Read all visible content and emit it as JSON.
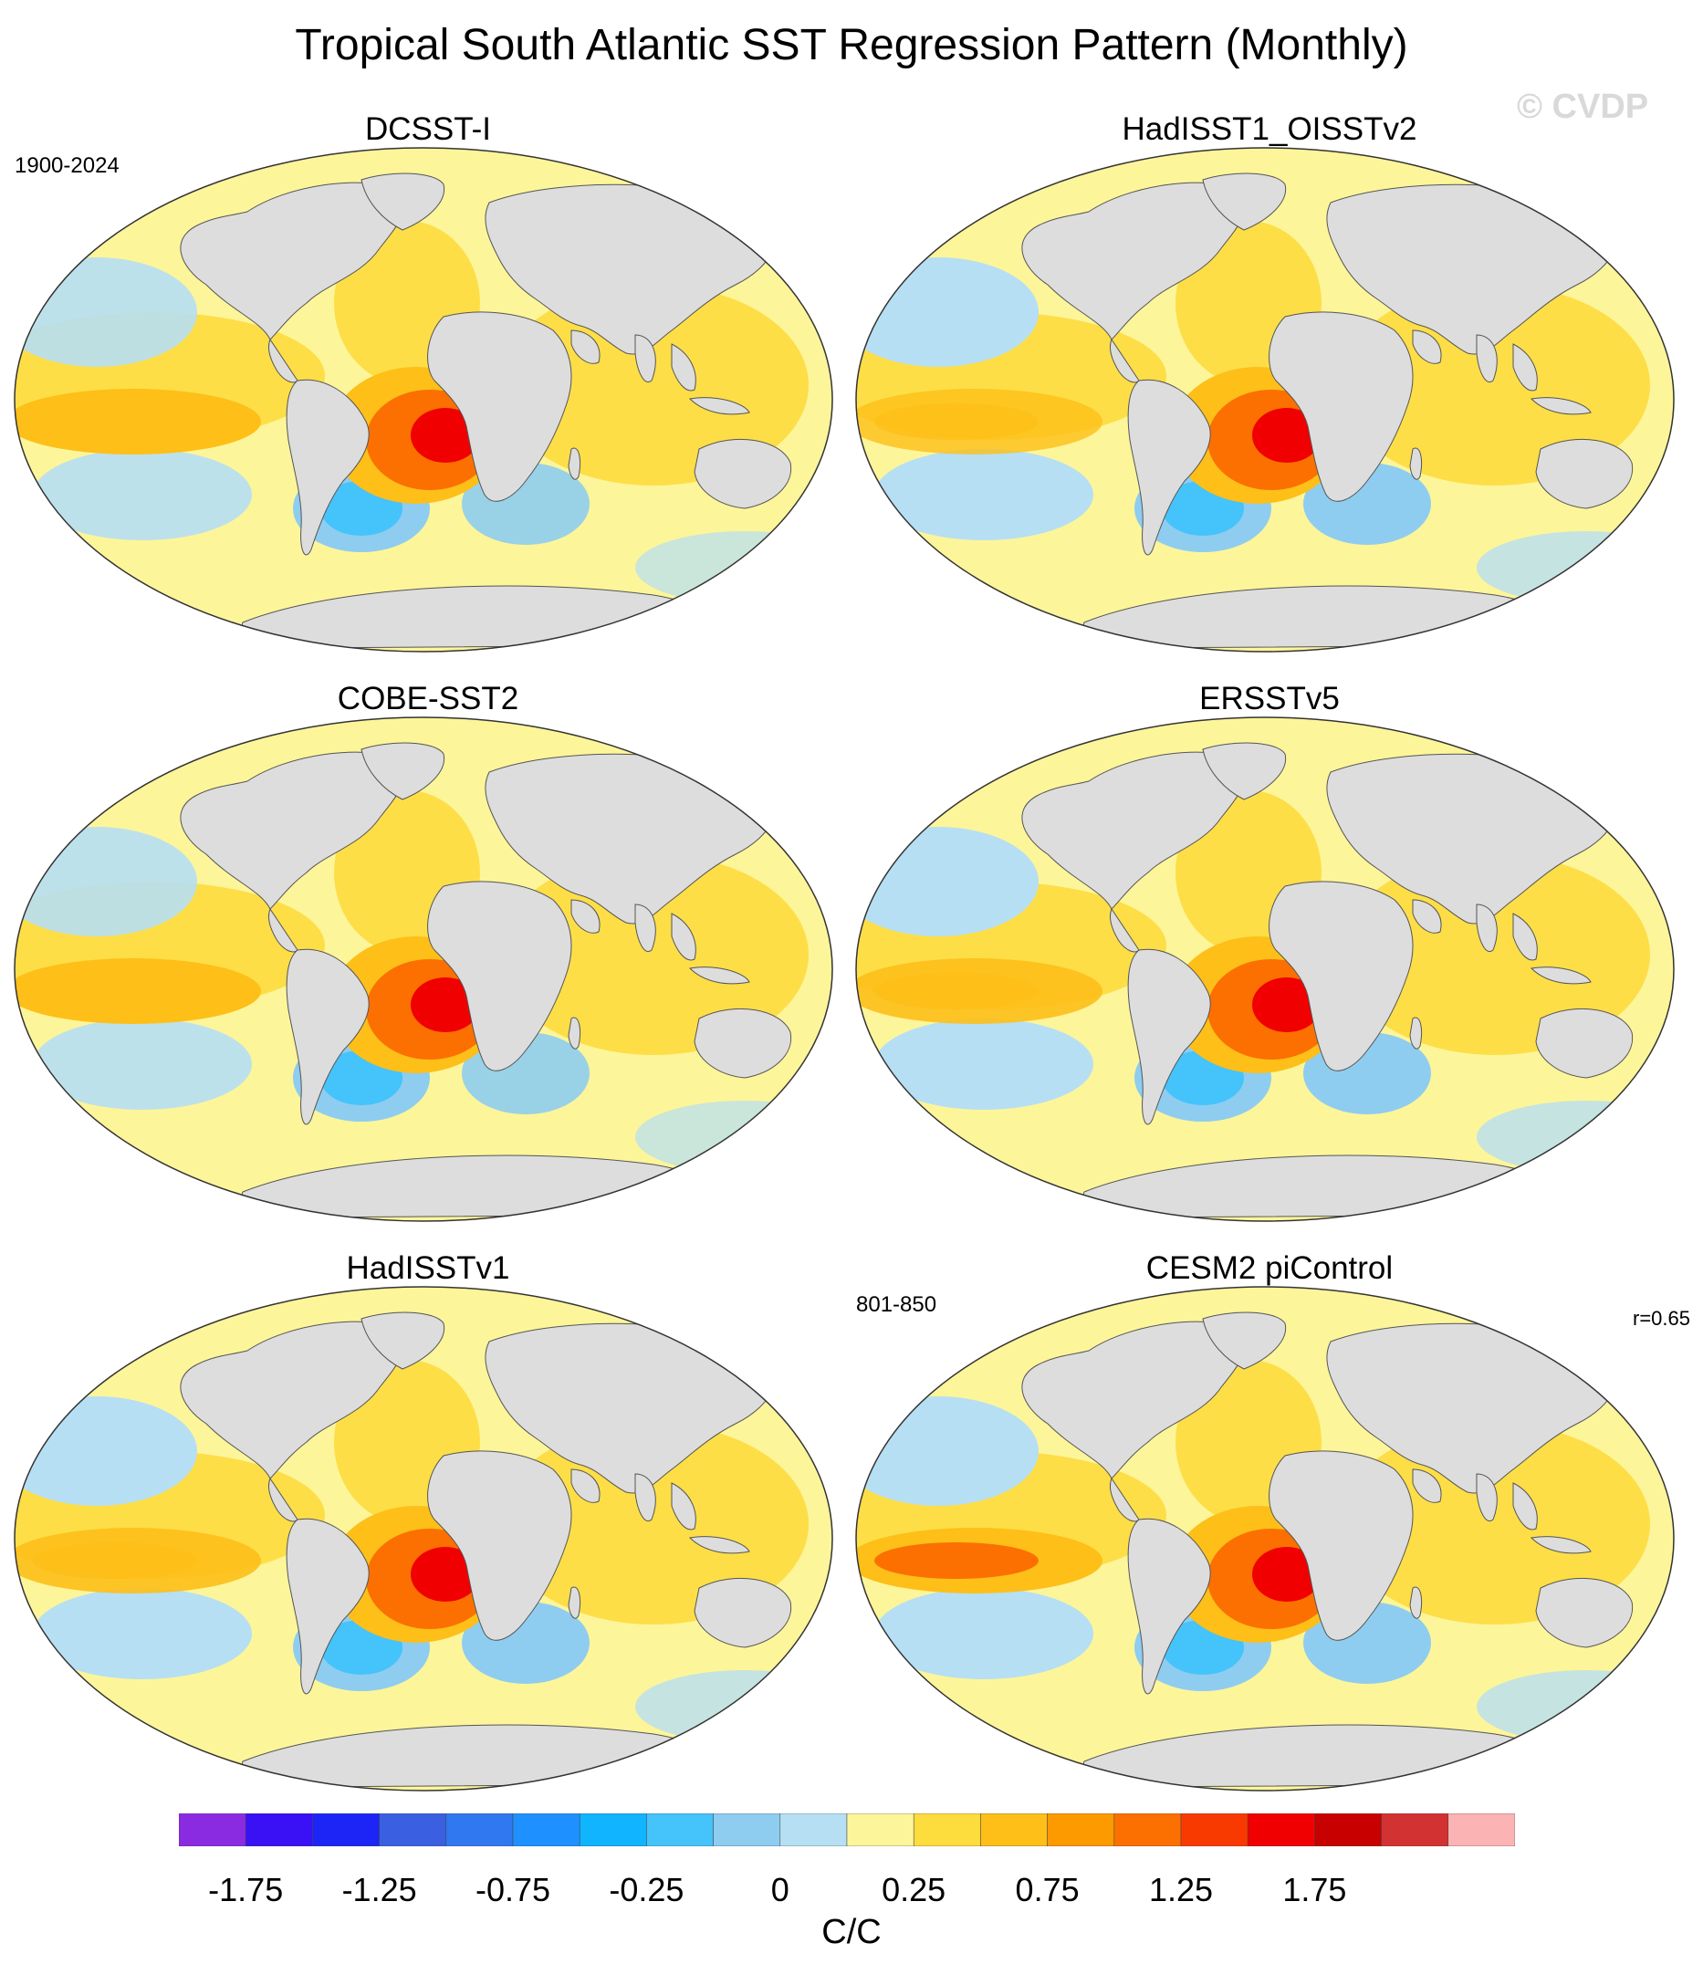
{
  "title": "Tropical South Atlantic SST Regression Pattern (Monthly)",
  "watermark": "© CVDP",
  "panels": [
    {
      "name": "DCSST-I",
      "left_note": "1900-2024",
      "right_note": ""
    },
    {
      "name": "HadISST1_OISSTv2",
      "left_note": "",
      "right_note": ""
    },
    {
      "name": "COBE-SST2",
      "left_note": "",
      "right_note": ""
    },
    {
      "name": "ERSSTv5",
      "left_note": "",
      "right_note": ""
    },
    {
      "name": "HadISSTv1",
      "left_note": "",
      "right_note": ""
    },
    {
      "name": "CESM2 piControl",
      "left_note": "801-850",
      "right_note": "r=0.65"
    }
  ],
  "colorbar": {
    "colors": [
      "#8a2be2",
      "#3a10f5",
      "#1c25f5",
      "#3a5fe0",
      "#2f78ef",
      "#1e90ff",
      "#10b4ff",
      "#45c3fb",
      "#8ecdf0",
      "#b6dff3",
      "#fdf59a",
      "#fddc3e",
      "#fdbf18",
      "#fd9a00",
      "#fb7000",
      "#f93a00",
      "#f00000",
      "#c80000",
      "#d23232",
      "#fcb3b3"
    ],
    "labels": [
      "-1.75",
      "-1.25",
      "-0.75",
      "-0.25",
      "0",
      "0.25",
      "0.75",
      "1.25",
      "1.75"
    ],
    "units": "C/C"
  },
  "colors": {
    "land": "#dddddd",
    "ocean_neutral": "#fdf59a",
    "light_warm": "#fddc3e",
    "warm": "#fdbf18",
    "hot": "#fb7000",
    "peak": "#f00000",
    "light_cool": "#b6dff3",
    "cool": "#8ecdf0",
    "cold": "#45c3fb"
  }
}
